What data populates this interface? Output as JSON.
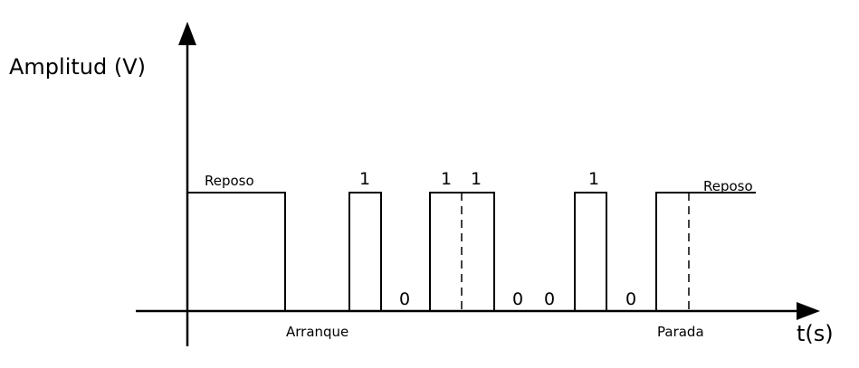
{
  "diagram": {
    "y_axis_label": "Amplitud (V)",
    "x_axis_label": "t(s)",
    "state_labels": {
      "idle_start": "Reposo",
      "start_bit": "Arranque",
      "stop_bit": "Parada",
      "idle_end": "Reposo"
    },
    "bits": [
      {
        "value": "1"
      },
      {
        "value": "0"
      },
      {
        "value": "1"
      },
      {
        "value": "1"
      },
      {
        "value": "0"
      },
      {
        "value": "0"
      },
      {
        "value": "1"
      },
      {
        "value": "0"
      }
    ],
    "colors": {
      "line": "#000000",
      "background": "#ffffff"
    }
  }
}
